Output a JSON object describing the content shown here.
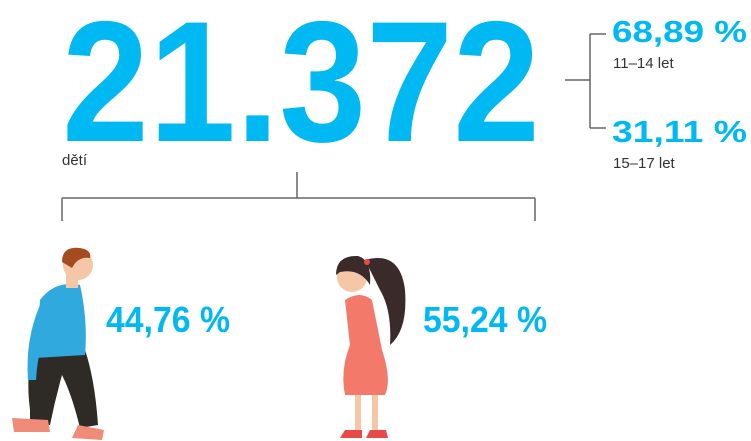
{
  "total": {
    "value": "21.372",
    "label": "dětí"
  },
  "age_groups": [
    {
      "percent": "68,89 %",
      "label": "11–14 let"
    },
    {
      "percent": "31,11 %",
      "label": "15–17 let"
    }
  ],
  "gender": [
    {
      "percent": "44,76 %"
    },
    {
      "percent": "55,24 %"
    }
  ]
}
